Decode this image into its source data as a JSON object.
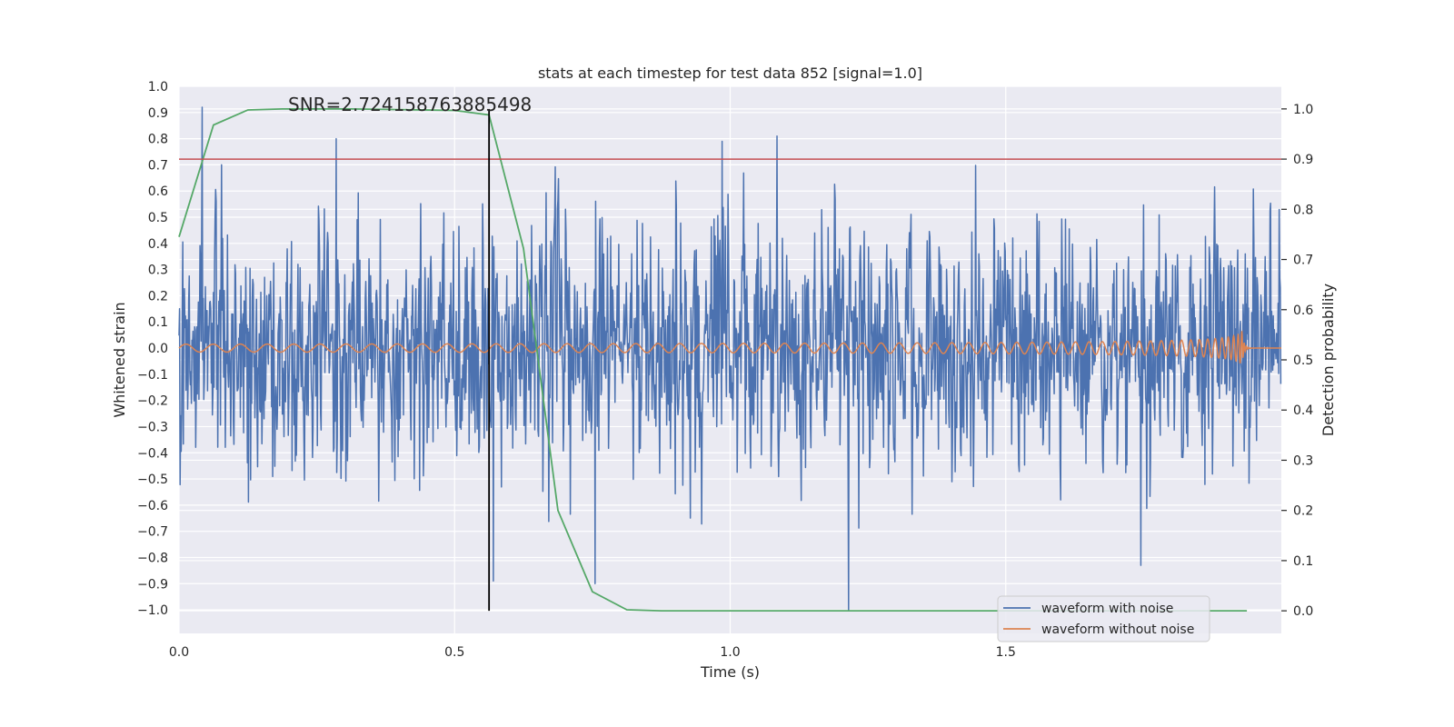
{
  "chart_data": {
    "type": "line",
    "title": "stats at each timestep for test data 852 [signal=1.0]",
    "annotation": "SNR=2.724158763885498",
    "xlabel": "Time (s)",
    "ylabel_left": "Whitened strain",
    "ylabel_right": "Detection probability",
    "xlim": [
      0,
      2.0
    ],
    "ylim_left": [
      -1.09,
      1.0
    ],
    "ylim_right": [
      -0.045,
      1.045
    ],
    "x_ticks": [
      "0.0",
      "0.5",
      "1.0",
      "1.5"
    ],
    "x_tick_values": [
      0,
      0.5,
      1.0,
      1.5
    ],
    "y_left_ticks": [
      "1.0",
      "0.9",
      "0.8",
      "0.7",
      "0.6",
      "0.5",
      "0.4",
      "0.3",
      "0.2",
      "0.1",
      "0.0",
      "−0.1",
      "−0.2",
      "−0.3",
      "−0.4",
      "−0.5",
      "−0.6",
      "−0.7",
      "−0.8",
      "−0.9",
      "−1.0"
    ],
    "y_left_tick_values": [
      1.0,
      0.9,
      0.8,
      0.7,
      0.6,
      0.5,
      0.4,
      0.3,
      0.2,
      0.1,
      0.0,
      -0.1,
      -0.2,
      -0.3,
      -0.4,
      -0.5,
      -0.6,
      -0.7,
      -0.8,
      -0.9,
      -1.0
    ],
    "y_right_ticks": [
      "1.0",
      "0.9",
      "0.8",
      "0.7",
      "0.6",
      "0.5",
      "0.4",
      "0.3",
      "0.2",
      "0.1",
      "0.0"
    ],
    "y_right_tick_values": [
      1.0,
      0.9,
      0.8,
      0.7,
      0.6,
      0.5,
      0.4,
      0.3,
      0.2,
      0.1,
      0.0
    ],
    "threshold_probability": 0.9,
    "marker_time": 0.5625,
    "legend_position": "lower-right",
    "grid": true,
    "series": [
      {
        "name": "waveform with noise",
        "color": "#4c72b0",
        "axis": "left",
        "description": "dense noise around 0, amplitude about ±0.5 with spikes reaching about ±0.9",
        "duration": 2.0,
        "spikes": [
          {
            "x": 0.042,
            "y": 0.92
          },
          {
            "x": 0.285,
            "y": 0.8
          },
          {
            "x": 0.57,
            "y": -0.89
          },
          {
            "x": 0.755,
            "y": -0.9
          },
          {
            "x": 0.985,
            "y": 0.79
          },
          {
            "x": 1.085,
            "y": 0.81
          },
          {
            "x": 1.215,
            "y": -1.0
          },
          {
            "x": 1.745,
            "y": -0.83
          }
        ]
      },
      {
        "name": "waveform without noise",
        "color": "#dd8452",
        "axis": "left",
        "description": "chirp signal: small oscillation that grows in frequency and amplitude, peaking near t=1.93 s then flat at 0",
        "start_amplitude": 0.015,
        "peak_amplitude": 0.1,
        "merger_time": 1.93,
        "end_time": 1.93
      },
      {
        "name": "",
        "color": "#55a868",
        "axis": "right",
        "x": [
          0.0,
          0.0625,
          0.125,
          0.1875,
          0.25,
          0.3125,
          0.375,
          0.4375,
          0.5,
          0.5625,
          0.625,
          0.6875,
          0.75,
          0.8125,
          0.875,
          0.9375,
          1.0,
          1.0625,
          1.125,
          1.1875,
          1.25,
          1.3125,
          1.375,
          1.4375,
          1.5,
          1.5625,
          1.625,
          1.6875,
          1.75,
          1.8125,
          1.875,
          1.9375
        ],
        "values": [
          0.745,
          0.968,
          0.998,
          1.0,
          1.0,
          1.0,
          0.999,
          0.998,
          0.997,
          0.988,
          0.722,
          0.2,
          0.038,
          0.002,
          0.0,
          0.0,
          0.0,
          0.0,
          0.0,
          0.0,
          0.0,
          0.0,
          0.0,
          0.0,
          0.0,
          0.0,
          0.0,
          0.0,
          0.0,
          0.0,
          0.0,
          0.0
        ]
      }
    ],
    "colors": {
      "background": "#eaeaf2",
      "grid": "#ffffff",
      "threshold": "#c44e52",
      "marker": "#000000"
    }
  },
  "legend": {
    "items": [
      {
        "label": "waveform with noise",
        "color": "#4c72b0"
      },
      {
        "label": "waveform without noise",
        "color": "#dd8452"
      }
    ]
  }
}
